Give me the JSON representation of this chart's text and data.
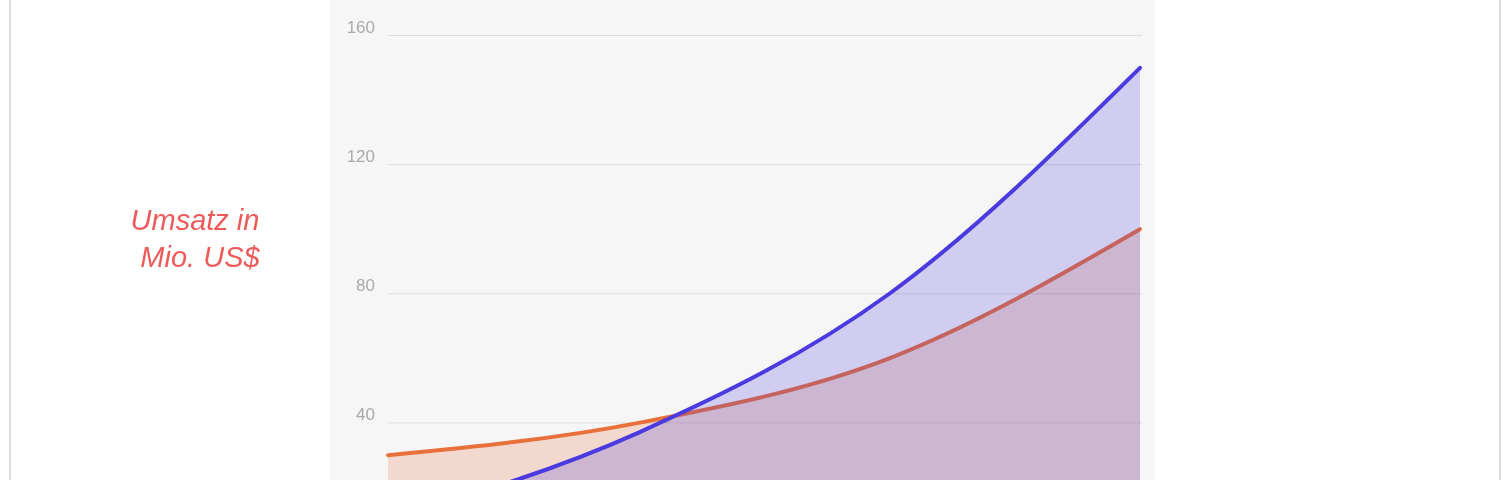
{
  "chart_data": {
    "type": "area",
    "ylabel": "Umsatz in Mio. US$",
    "categories": [
      null,
      null,
      null,
      null
    ],
    "series": [
      {
        "color": "#e8703a",
        "values": [
          30,
          40,
          60,
          100
        ]
      },
      {
        "color": "#4a3ae0",
        "values": [
          10,
          37,
          80,
          150
        ]
      }
    ],
    "ylim": [
      0,
      171
    ],
    "yticks": [
      40,
      80,
      120,
      160
    ],
    "grid": "y"
  }
}
